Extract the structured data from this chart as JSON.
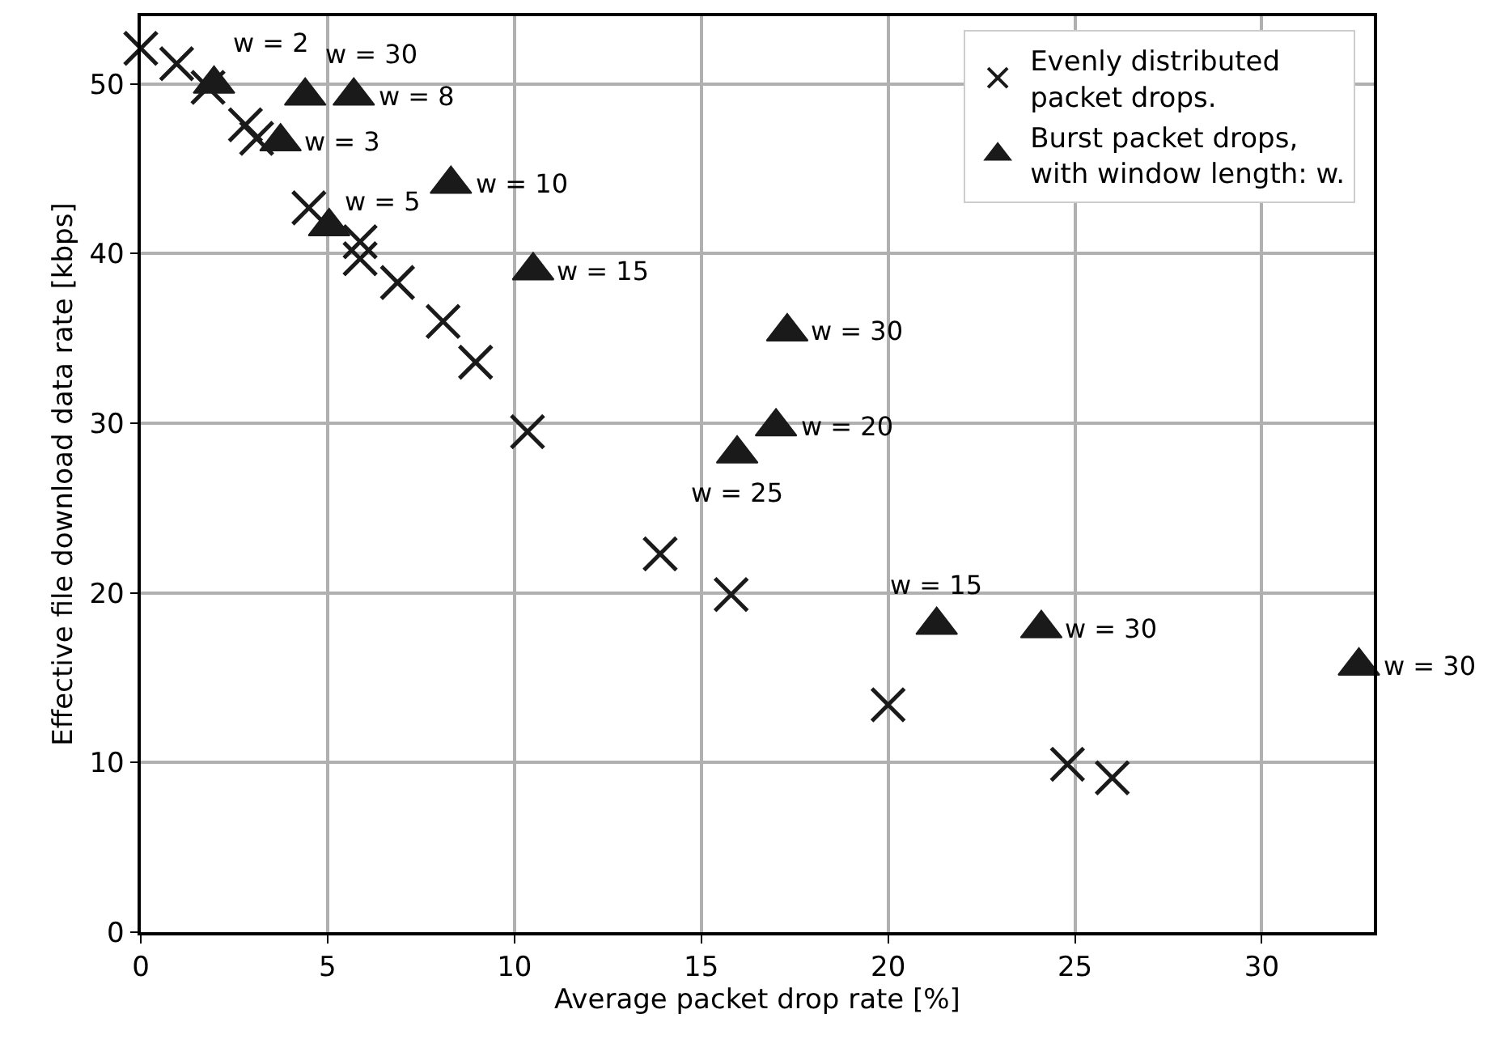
{
  "chart_data": {
    "type": "scatter",
    "xlabel": "Average packet drop rate [%]",
    "ylabel": "Effective file download data rate [kbps]",
    "xlim": [
      0,
      33
    ],
    "ylim": [
      0,
      54
    ],
    "xticks": [
      0,
      5,
      10,
      15,
      20,
      25,
      30
    ],
    "yticks": [
      0,
      10,
      20,
      30,
      40,
      50
    ],
    "grid": true,
    "legend": "top right",
    "series": [
      {
        "name": "Evenly distributed\npacket drops.",
        "color": "#1a1a1a",
        "marker": "cross",
        "x": [
          0,
          0.96,
          1.8,
          2.8,
          3.1,
          4.5,
          5.87,
          5.87,
          6.87,
          8.09,
          8.96,
          10.35,
          13.9,
          15.8,
          20.0,
          24.8,
          26.0
        ],
        "values": [
          52.1,
          51.2,
          49.8,
          47.6,
          46.8,
          42.7,
          40.7,
          39.7,
          38.3,
          36.0,
          33.6,
          29.5,
          22.3,
          19.9,
          13.4,
          9.9,
          9.1
        ]
      },
      {
        "name": "Burst packet drops,\nwith window length: w.",
        "color": "#1a1a1a",
        "marker": "triangle",
        "x": [
          1.96,
          4.4,
          5.7,
          3.74,
          8.3,
          5.04,
          10.5,
          17.3,
          17.0,
          15.96,
          21.3,
          24.1,
          32.6
        ],
        "values": [
          50.0,
          49.3,
          49.3,
          46.6,
          44.1,
          41.6,
          39.0,
          35.4,
          29.8,
          28.2,
          18.1,
          17.9,
          15.7
        ]
      }
    ],
    "annotations": [
      {
        "text": "w = 2",
        "x": 1.96,
        "y": 50.0
      },
      {
        "text": "w = 30",
        "x": 4.4,
        "y": 49.3
      },
      {
        "text": "w = 8",
        "x": 5.7,
        "y": 49.3
      },
      {
        "text": "w = 3",
        "x": 3.74,
        "y": 46.6
      },
      {
        "text": "w = 10",
        "x": 8.3,
        "y": 44.1
      },
      {
        "text": "w = 5",
        "x": 5.04,
        "y": 41.6
      },
      {
        "text": "w = 15",
        "x": 10.5,
        "y": 39.0
      },
      {
        "text": "w = 30",
        "x": 17.3,
        "y": 35.4
      },
      {
        "text": "w = 20",
        "x": 17.0,
        "y": 29.8
      },
      {
        "text": "w = 25",
        "x": 15.96,
        "y": 28.2
      },
      {
        "text": "w = 15",
        "x": 21.3,
        "y": 18.1
      },
      {
        "text": "w = 30",
        "x": 24.1,
        "y": 17.9
      },
      {
        "text": "w = 30",
        "x": 32.6,
        "y": 15.7
      }
    ]
  }
}
